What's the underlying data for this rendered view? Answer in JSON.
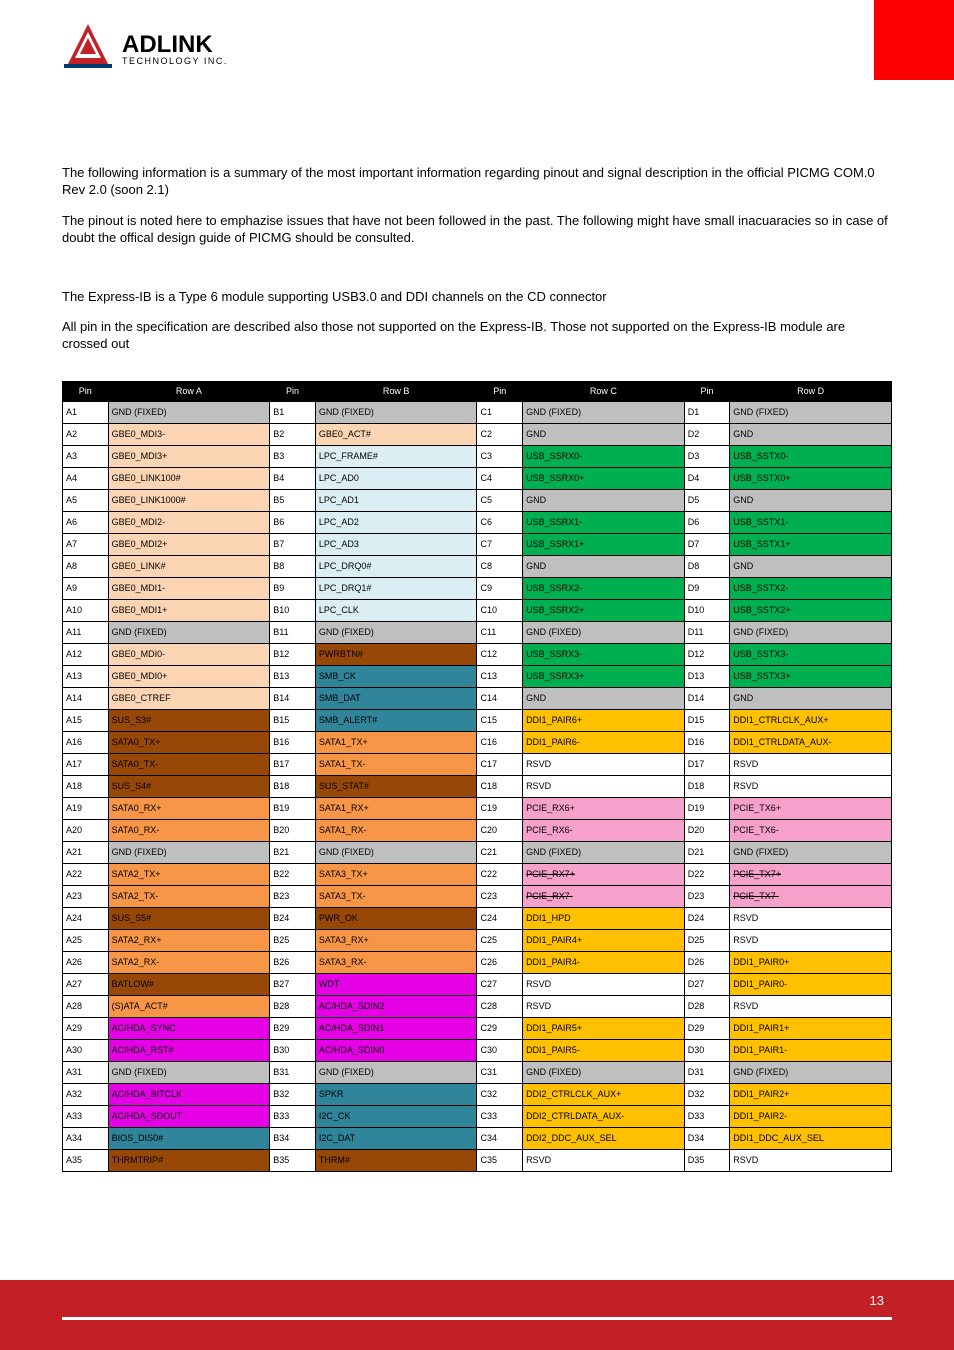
{
  "logo": {
    "brand": "ADLINK",
    "sub": "TECHNOLOGY INC."
  },
  "paragraphs": {
    "p1": "The following information is a summary of the most important information regarding pinout and signal description in the official PICMG COM.0 Rev 2.0 (soon 2.1)",
    "p2": "The pinout is noted here to emphazise issues that have not been followed in the past. The following might have small inacuaracies so in case of doubt the offical design guide of PICMG should be consulted.",
    "p3": "The Express-IB is a Type 6 module supporting USB3.0 and DDI channels on the CD connector",
    "p4": "All pin in the specification are described also those not supported on the Express-IB. Those not supported on the Express-IB module are crossed out"
  },
  "colors": {
    "grey": "#bfbfbf",
    "peach": "#fbd4b4",
    "ltcyan": "#daeef3",
    "green": "#00b050",
    "brown": "#984806",
    "teal": "#31859b",
    "amber": "#f79646",
    "pink": "#f5a1cb",
    "white": "#ffffff",
    "magenta": "#e600e6",
    "gold": "#ffc000"
  },
  "header": [
    "Pin",
    "Row A",
    "Pin",
    "Row B",
    "Pin",
    "Row C",
    "Pin",
    "Row D"
  ],
  "rows": [
    [
      [
        "A1",
        "grey",
        "GND (FIXED)"
      ],
      [
        "B1",
        "grey",
        "GND (FIXED)"
      ],
      [
        "C1",
        "grey",
        "GND (FIXED)"
      ],
      [
        "D1",
        "grey",
        "GND (FIXED)"
      ]
    ],
    [
      [
        "A2",
        "peach",
        "GBE0_MDI3-"
      ],
      [
        "B2",
        "peach",
        "GBE0_ACT#"
      ],
      [
        "C2",
        "grey",
        "GND"
      ],
      [
        "D2",
        "grey",
        "GND"
      ]
    ],
    [
      [
        "A3",
        "peach",
        "GBE0_MDI3+"
      ],
      [
        "B3",
        "ltcyan",
        "LPC_FRAME#"
      ],
      [
        "C3",
        "green",
        "USB_SSRX0-"
      ],
      [
        "D3",
        "green",
        "USB_SSTX0-"
      ]
    ],
    [
      [
        "A4",
        "peach",
        "GBE0_LINK100#"
      ],
      [
        "B4",
        "ltcyan",
        "LPC_AD0"
      ],
      [
        "C4",
        "green",
        "USB_SSRX0+"
      ],
      [
        "D4",
        "green",
        "USB_SSTX0+"
      ]
    ],
    [
      [
        "A5",
        "peach",
        "GBE0_LINK1000#"
      ],
      [
        "B5",
        "ltcyan",
        "LPC_AD1"
      ],
      [
        "C5",
        "grey",
        "GND"
      ],
      [
        "D5",
        "grey",
        "GND"
      ]
    ],
    [
      [
        "A6",
        "peach",
        "GBE0_MDI2-"
      ],
      [
        "B6",
        "ltcyan",
        "LPC_AD2"
      ],
      [
        "C6",
        "green",
        "USB_SSRX1-"
      ],
      [
        "D6",
        "green",
        "USB_SSTX1-"
      ]
    ],
    [
      [
        "A7",
        "peach",
        "GBE0_MDI2+"
      ],
      [
        "B7",
        "ltcyan",
        "LPC_AD3"
      ],
      [
        "C7",
        "green",
        "USB_SSRX1+"
      ],
      [
        "D7",
        "green",
        "USB_SSTX1+"
      ]
    ],
    [
      [
        "A8",
        "peach",
        "GBE0_LINK#"
      ],
      [
        "B8",
        "ltcyan",
        "LPC_DRQ0#"
      ],
      [
        "C8",
        "grey",
        "GND"
      ],
      [
        "D8",
        "grey",
        "GND"
      ]
    ],
    [
      [
        "A9",
        "peach",
        "GBE0_MDI1-"
      ],
      [
        "B9",
        "ltcyan",
        "LPC_DRQ1#"
      ],
      [
        "C9",
        "green",
        "USB_SSRX2-"
      ],
      [
        "D9",
        "green",
        "USB_SSTX2-"
      ]
    ],
    [
      [
        "A10",
        "peach",
        "GBE0_MDI1+"
      ],
      [
        "B10",
        "ltcyan",
        "LPC_CLK"
      ],
      [
        "C10",
        "green",
        "USB_SSRX2+"
      ],
      [
        "D10",
        "green",
        "USB_SSTX2+"
      ]
    ],
    [
      [
        "A11",
        "grey",
        "GND (FIXED)"
      ],
      [
        "B11",
        "grey",
        "GND (FIXED)"
      ],
      [
        "C11",
        "grey",
        "GND (FIXED)"
      ],
      [
        "D11",
        "grey",
        "GND (FIXED)"
      ]
    ],
    [
      [
        "A12",
        "peach",
        "GBE0_MDI0-"
      ],
      [
        "B12",
        "brown",
        "PWRBTN#"
      ],
      [
        "C12",
        "green",
        "USB_SSRX3-"
      ],
      [
        "D12",
        "green",
        "USB_SSTX3-"
      ]
    ],
    [
      [
        "A13",
        "peach",
        "GBE0_MDI0+"
      ],
      [
        "B13",
        "teal",
        "SMB_CK"
      ],
      [
        "C13",
        "green",
        "USB_SSRX3+"
      ],
      [
        "D13",
        "green",
        "USB_SSTX3+"
      ]
    ],
    [
      [
        "A14",
        "peach",
        "GBE0_CTREF"
      ],
      [
        "B14",
        "teal",
        "SMB_DAT"
      ],
      [
        "C14",
        "grey",
        "GND"
      ],
      [
        "D14",
        "grey",
        "GND"
      ]
    ],
    [
      [
        "A15",
        "brown",
        "SUS_S3#"
      ],
      [
        "B15",
        "teal",
        "SMB_ALERT#"
      ],
      [
        "C15",
        "gold",
        "DDI1_PAIR6+"
      ],
      [
        "D15",
        "gold",
        "DDI1_CTRLCLK_AUX+"
      ]
    ],
    [
      [
        "A16",
        "brown",
        "SATA0_TX+"
      ],
      [
        "B16",
        "amber",
        "SATA1_TX+"
      ],
      [
        "C16",
        "gold",
        "DDI1_PAIR6-"
      ],
      [
        "D16",
        "gold",
        "DDI1_CTRLDATA_AUX-"
      ]
    ],
    [
      [
        "A17",
        "brown",
        "SATA0_TX-"
      ],
      [
        "B17",
        "amber",
        "SATA1_TX-"
      ],
      [
        "C17",
        "white",
        "RSVD"
      ],
      [
        "D17",
        "white",
        "RSVD"
      ]
    ],
    [
      [
        "A18",
        "brown",
        "SUS_S4#"
      ],
      [
        "B18",
        "brown",
        "SUS_STAT#"
      ],
      [
        "C18",
        "white",
        "RSVD"
      ],
      [
        "D18",
        "white",
        "RSVD"
      ]
    ],
    [
      [
        "A19",
        "amber",
        "SATA0_RX+"
      ],
      [
        "B19",
        "amber",
        "SATA1_RX+"
      ],
      [
        "C19",
        "pink",
        "PCIE_RX6+"
      ],
      [
        "D19",
        "pink",
        "PCIE_TX6+"
      ]
    ],
    [
      [
        "A20",
        "amber",
        "SATA0_RX-"
      ],
      [
        "B20",
        "amber",
        "SATA1_RX-"
      ],
      [
        "C20",
        "pink",
        "PCIE_RX6-"
      ],
      [
        "D20",
        "pink",
        "PCIE_TX6-"
      ]
    ],
    [
      [
        "A21",
        "grey",
        "GND (FIXED)"
      ],
      [
        "B21",
        "grey",
        "GND (FIXED)"
      ],
      [
        "C21",
        "grey",
        "GND (FIXED)"
      ],
      [
        "D21",
        "grey",
        "GND (FIXED)"
      ]
    ],
    [
      [
        "A22",
        "amber",
        "SATA2_TX+"
      ],
      [
        "B22",
        "amber",
        "SATA3_TX+"
      ],
      [
        "C22",
        "pink",
        "PCIE_RX7+",
        true
      ],
      [
        "D22",
        "pink",
        "PCIE_TX7+",
        true
      ]
    ],
    [
      [
        "A23",
        "amber",
        "SATA2_TX-"
      ],
      [
        "B23",
        "amber",
        "SATA3_TX-"
      ],
      [
        "C23",
        "pink",
        "PCIE_RX7-",
        true
      ],
      [
        "D23",
        "pink",
        "PCIE_TX7-",
        true
      ]
    ],
    [
      [
        "A24",
        "brown",
        "SUS_S5#"
      ],
      [
        "B24",
        "brown",
        "PWR_OK"
      ],
      [
        "C24",
        "gold",
        "DDI1_HPD"
      ],
      [
        "D24",
        "white",
        "RSVD"
      ]
    ],
    [
      [
        "A25",
        "amber",
        "SATA2_RX+"
      ],
      [
        "B25",
        "amber",
        "SATA3_RX+"
      ],
      [
        "C25",
        "gold",
        "DDI1_PAIR4+"
      ],
      [
        "D25",
        "white",
        "RSVD"
      ]
    ],
    [
      [
        "A26",
        "amber",
        "SATA2_RX-"
      ],
      [
        "B26",
        "amber",
        "SATA3_RX-"
      ],
      [
        "C26",
        "gold",
        "DDI1_PAIR4-"
      ],
      [
        "D26",
        "gold",
        "DDI1_PAIR0+"
      ]
    ],
    [
      [
        "A27",
        "brown",
        "BATLOW#"
      ],
      [
        "B27",
        "magenta",
        "WDT"
      ],
      [
        "C27",
        "white",
        "RSVD"
      ],
      [
        "D27",
        "gold",
        "DDI1_PAIR0-"
      ]
    ],
    [
      [
        "A28",
        "amber",
        "(S)ATA_ACT#"
      ],
      [
        "B28",
        "magenta",
        "AC/HDA_SDIN2"
      ],
      [
        "C28",
        "white",
        "RSVD"
      ],
      [
        "D28",
        "white",
        "RSVD"
      ]
    ],
    [
      [
        "A29",
        "magenta",
        "AC/HDA_SYNC"
      ],
      [
        "B29",
        "magenta",
        "AC/HDA_SDIN1"
      ],
      [
        "C29",
        "gold",
        "DDI1_PAIR5+"
      ],
      [
        "D29",
        "gold",
        "DDI1_PAIR1+"
      ]
    ],
    [
      [
        "A30",
        "magenta",
        "AC/HDA_RST#"
      ],
      [
        "B30",
        "magenta",
        "AC/HDA_SDIN0"
      ],
      [
        "C30",
        "gold",
        "DDI1_PAIR5-"
      ],
      [
        "D30",
        "gold",
        "DDI1_PAIR1-"
      ]
    ],
    [
      [
        "A31",
        "grey",
        "GND (FIXED)"
      ],
      [
        "B31",
        "grey",
        "GND (FIXED)"
      ],
      [
        "C31",
        "grey",
        "GND (FIXED)"
      ],
      [
        "D31",
        "grey",
        "GND (FIXED)"
      ]
    ],
    [
      [
        "A32",
        "magenta",
        "AC/HDA_BITCLK"
      ],
      [
        "B32",
        "teal",
        "SPKR"
      ],
      [
        "C32",
        "gold",
        "DDI2_CTRLCLK_AUX+"
      ],
      [
        "D32",
        "gold",
        "DDI1_PAIR2+"
      ]
    ],
    [
      [
        "A33",
        "magenta",
        "AC/HDA_SDOUT"
      ],
      [
        "B33",
        "teal",
        "I2C_CK"
      ],
      [
        "C33",
        "gold",
        "DDI2_CTRLDATA_AUX-"
      ],
      [
        "D33",
        "gold",
        "DDI1_PAIR2-"
      ]
    ],
    [
      [
        "A34",
        "teal",
        "BIOS_DIS0#"
      ],
      [
        "B34",
        "teal",
        "I2C_DAT"
      ],
      [
        "C34",
        "gold",
        "DDI2_DDC_AUX_SEL"
      ],
      [
        "D34",
        "gold",
        "DDI1_DDC_AUX_SEL"
      ]
    ],
    [
      [
        "A35",
        "brown",
        "THRMTRIP#"
      ],
      [
        "B35",
        "brown",
        "THRM#"
      ],
      [
        "C35",
        "white",
        "RSVD"
      ],
      [
        "D35",
        "white",
        "RSVD"
      ]
    ]
  ],
  "pageNumber": "13"
}
